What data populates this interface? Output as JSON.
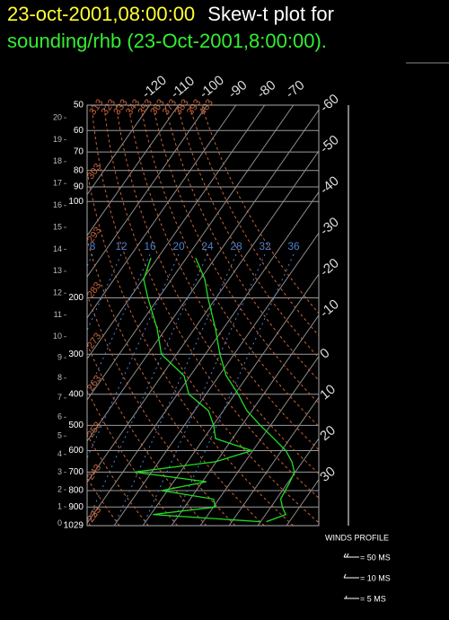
{
  "chart_data": {
    "type": "skew-t",
    "title": "23-oct-2001,08:00:00",
    "title_text": "Skew-t plot for",
    "subtitle": "sounding/rhb (23-Oct-2001,8:00:00).",
    "ylim": [
      50,
      1029
    ],
    "yticks": [
      50,
      60,
      70,
      80,
      90,
      100,
      200,
      300,
      400,
      500,
      600,
      700,
      800,
      900,
      1029
    ],
    "log_scale": true,
    "grid": true,
    "height_ticks_km": [
      0,
      1,
      2,
      3,
      4,
      5,
      6,
      7,
      8,
      9,
      10,
      11,
      12,
      13,
      14,
      15,
      16,
      17,
      18,
      19,
      20
    ],
    "isotherms": [
      -120,
      -110,
      -100,
      -90,
      -80,
      -70,
      -60,
      -50,
      -40,
      -30,
      -20,
      -10,
      0,
      10,
      20,
      30
    ],
    "isotherm_color": "#8c8c8c",
    "dry_adiabats": [
      223,
      233,
      243,
      253,
      263,
      273,
      283,
      293,
      303,
      313,
      323,
      333,
      343,
      353,
      363,
      373,
      383,
      393,
      403
    ],
    "dry_adiabat_color": "#c8643c",
    "mixing_ratio": [
      8,
      12,
      16,
      20,
      24,
      28,
      32,
      36
    ],
    "mixing_ratio_color": "#4f7fc8",
    "pressure": [
      1000,
      950,
      900,
      850,
      800,
      750,
      700,
      650,
      600,
      550,
      500,
      450,
      400,
      350,
      300,
      250,
      200,
      175,
      150
    ],
    "series": [
      {
        "color": "#22dd22",
        "values": [
          22.0,
          27.0,
          24.0,
          21.5,
          21.0,
          20.5,
          19.7,
          16.3,
          11.5,
          4.4,
          -3.6,
          -11.8,
          -18.8,
          -27.5,
          -34.9,
          -42.6,
          -52.8,
          -58.4,
          -66.8
        ]
      },
      {
        "color": "#22dd22",
        "values": [
          20.0,
          -19.2,
          0.7,
          -1.9,
          -22.0,
          -8.6,
          -36.0,
          -10.3,
          -0.4,
          -15.9,
          -19.8,
          -25.2,
          -36.0,
          -42.2,
          -55.3,
          -62.9,
          -73.7,
          -79.7,
          -82.4
        ]
      }
    ],
    "wind_legend": {
      "title": "WINDS PROFILE",
      "entries": [
        "= 50 MS",
        "= 10 MS",
        "= 5 MS"
      ]
    }
  }
}
